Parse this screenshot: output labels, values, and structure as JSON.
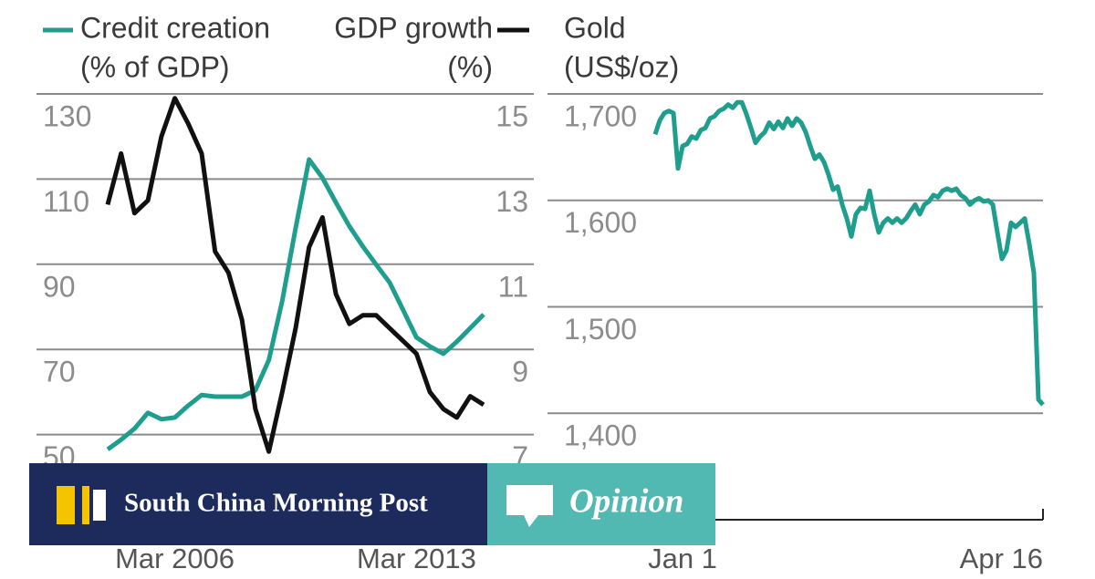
{
  "chart_data": [
    {
      "type": "line",
      "categories": [
        null,
        null,
        null,
        null,
        null,
        "Mar 2006",
        null,
        null,
        null,
        null,
        null,
        null,
        null,
        null,
        null,
        null,
        null,
        null,
        null,
        null,
        null,
        null,
        null,
        "Mar 2013",
        null,
        null,
        null,
        null,
        null
      ],
      "series": [
        {
          "name": "Credit creation",
          "color": "#1f9e8e",
          "values": [
            46.5,
            48.8,
            51.4,
            55.1,
            53.6,
            54.0,
            56.8,
            59.3,
            58.9,
            58.9,
            58.9,
            60.4,
            67.5,
            81.4,
            98.5,
            114.6,
            110.3,
            104.5,
            98.9,
            94.2,
            89.9,
            85.7,
            79.3,
            72.8,
            70.7,
            69.0,
            71.8,
            75.0,
            78.2
          ]
        },
        {
          "name": "GDP growth",
          "color": "#111111",
          "axis": "y2",
          "values": [
            12.4,
            13.6,
            12.2,
            12.5,
            14.0,
            14.9,
            14.3,
            13.6,
            11.3,
            10.8,
            9.7,
            7.6,
            6.6,
            8.0,
            9.5,
            11.4,
            12.1,
            10.3,
            9.6,
            9.8,
            9.8,
            9.5,
            9.2,
            8.9,
            8.0,
            7.6,
            7.4,
            7.9,
            7.7
          ]
        }
      ],
      "ylabel": "(% of GDP)",
      "y2label": "(%)",
      "ylim": [
        30,
        130
      ],
      "yticks": [
        50,
        70,
        90,
        110,
        130
      ],
      "y2lim": [
        5,
        15
      ],
      "y2ticks": [
        7,
        9,
        11,
        13,
        15
      ],
      "grid": true
    },
    {
      "type": "line",
      "categories": [
        null,
        null,
        null,
        null,
        null,
        null,
        "Jan 1",
        null,
        null,
        null,
        null,
        null,
        null,
        null,
        null,
        null,
        null,
        null,
        null,
        null,
        null,
        null,
        null,
        null,
        null,
        null,
        null,
        null,
        null,
        null,
        null,
        null,
        null,
        null,
        null,
        null,
        null,
        null,
        null,
        null,
        null,
        null,
        null,
        null,
        null,
        null,
        null,
        null,
        null,
        null,
        null,
        null,
        null,
        null,
        null,
        null,
        null,
        null,
        null,
        null,
        null,
        null,
        null,
        null,
        null,
        null,
        null,
        null,
        null,
        null,
        null,
        null,
        null,
        null,
        null,
        null,
        null,
        null,
        null,
        null,
        null,
        null,
        null,
        null,
        null,
        "Apr 16"
      ],
      "series": [
        {
          "name": "Gold",
          "color": "#1f9e8e",
          "values": [
            1662,
            1675,
            1682,
            1684,
            1682,
            1630,
            1651,
            1653,
            1660,
            1658,
            1666,
            1668,
            1677,
            1679,
            1684,
            1686,
            1690,
            1687,
            1692,
            1692,
            1681,
            1668,
            1654,
            1660,
            1664,
            1673,
            1667,
            1674,
            1668,
            1677,
            1670,
            1677,
            1673,
            1664,
            1651,
            1639,
            1643,
            1636,
            1624,
            1610,
            1613,
            1596,
            1583,
            1566,
            1587,
            1593,
            1592,
            1609,
            1587,
            1570,
            1579,
            1583,
            1579,
            1583,
            1579,
            1583,
            1590,
            1596,
            1587,
            1596,
            1599,
            1605,
            1603,
            1609,
            1611,
            1609,
            1611,
            1605,
            1602,
            1596,
            1600,
            1602,
            1599,
            1600,
            1596,
            1570,
            1545,
            1553,
            1579,
            1575,
            1579,
            1583,
            1559,
            1532,
            1413,
            1408
          ]
        }
      ],
      "ylabel": "(US$/oz)",
      "ylim": [
        1300,
        1700
      ],
      "yticks": [
        {
          "value": 1400,
          "label": "1,400"
        },
        {
          "value": 1500,
          "label": "1,500"
        },
        {
          "value": 1600,
          "label": "1,600"
        },
        {
          "value": 1700,
          "label": "1,700"
        }
      ],
      "grid": true
    }
  ],
  "banner": {
    "brand": "South China Morning Post",
    "section": "Opinion"
  }
}
